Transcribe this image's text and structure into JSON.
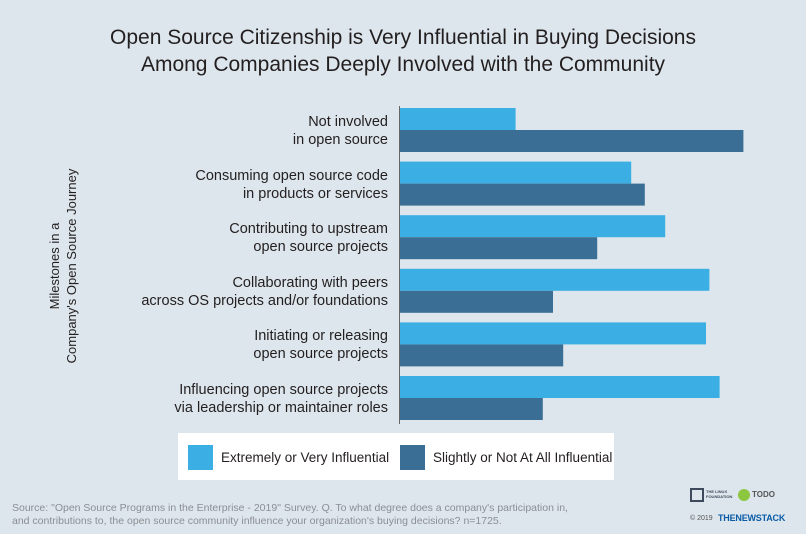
{
  "chart_data": {
    "type": "bar",
    "orientation": "horizontal",
    "title": [
      "Open Source Citizenship is Very Influential in Buying Decisions",
      "Among Companies Deeply Involved with the Community"
    ],
    "ylabel": [
      "Milestones in a",
      "Company's Open Source Journey"
    ],
    "xlim": [
      0,
      100
    ],
    "categories": [
      [
        "Not involved",
        "in open source"
      ],
      [
        "Consuming open source code",
        "in products or services"
      ],
      [
        "Contributing to upstream",
        "open source projects"
      ],
      [
        "Collaborating with peers",
        "across OS projects and/or foundations"
      ],
      [
        "Initiating or releasing",
        "open source projects"
      ],
      [
        "Influencing open source projects",
        "via leadership or maintainer roles"
      ]
    ],
    "series": [
      {
        "name": "Extremely or Very Influential",
        "color": "#3bafe3",
        "values": [
          34,
          68,
          78,
          91,
          90,
          94
        ]
      },
      {
        "name": "Slightly or Not At All Influential",
        "color": "#3b6e94",
        "values": [
          101,
          72,
          58,
          45,
          48,
          42
        ]
      }
    ]
  },
  "source": [
    "Source: \"Open Source Programs in the Enterprise - 2019\" Survey. Q. To what degree does a company's participation in,",
    "and contributions to, the open source community influence your organization's buying decisions? n=1725."
  ],
  "logos": {
    "linux": "THE LINUX FOUNDATION",
    "todo": "TODO",
    "year": "© 2019",
    "tns": "THENEWSTACK"
  }
}
